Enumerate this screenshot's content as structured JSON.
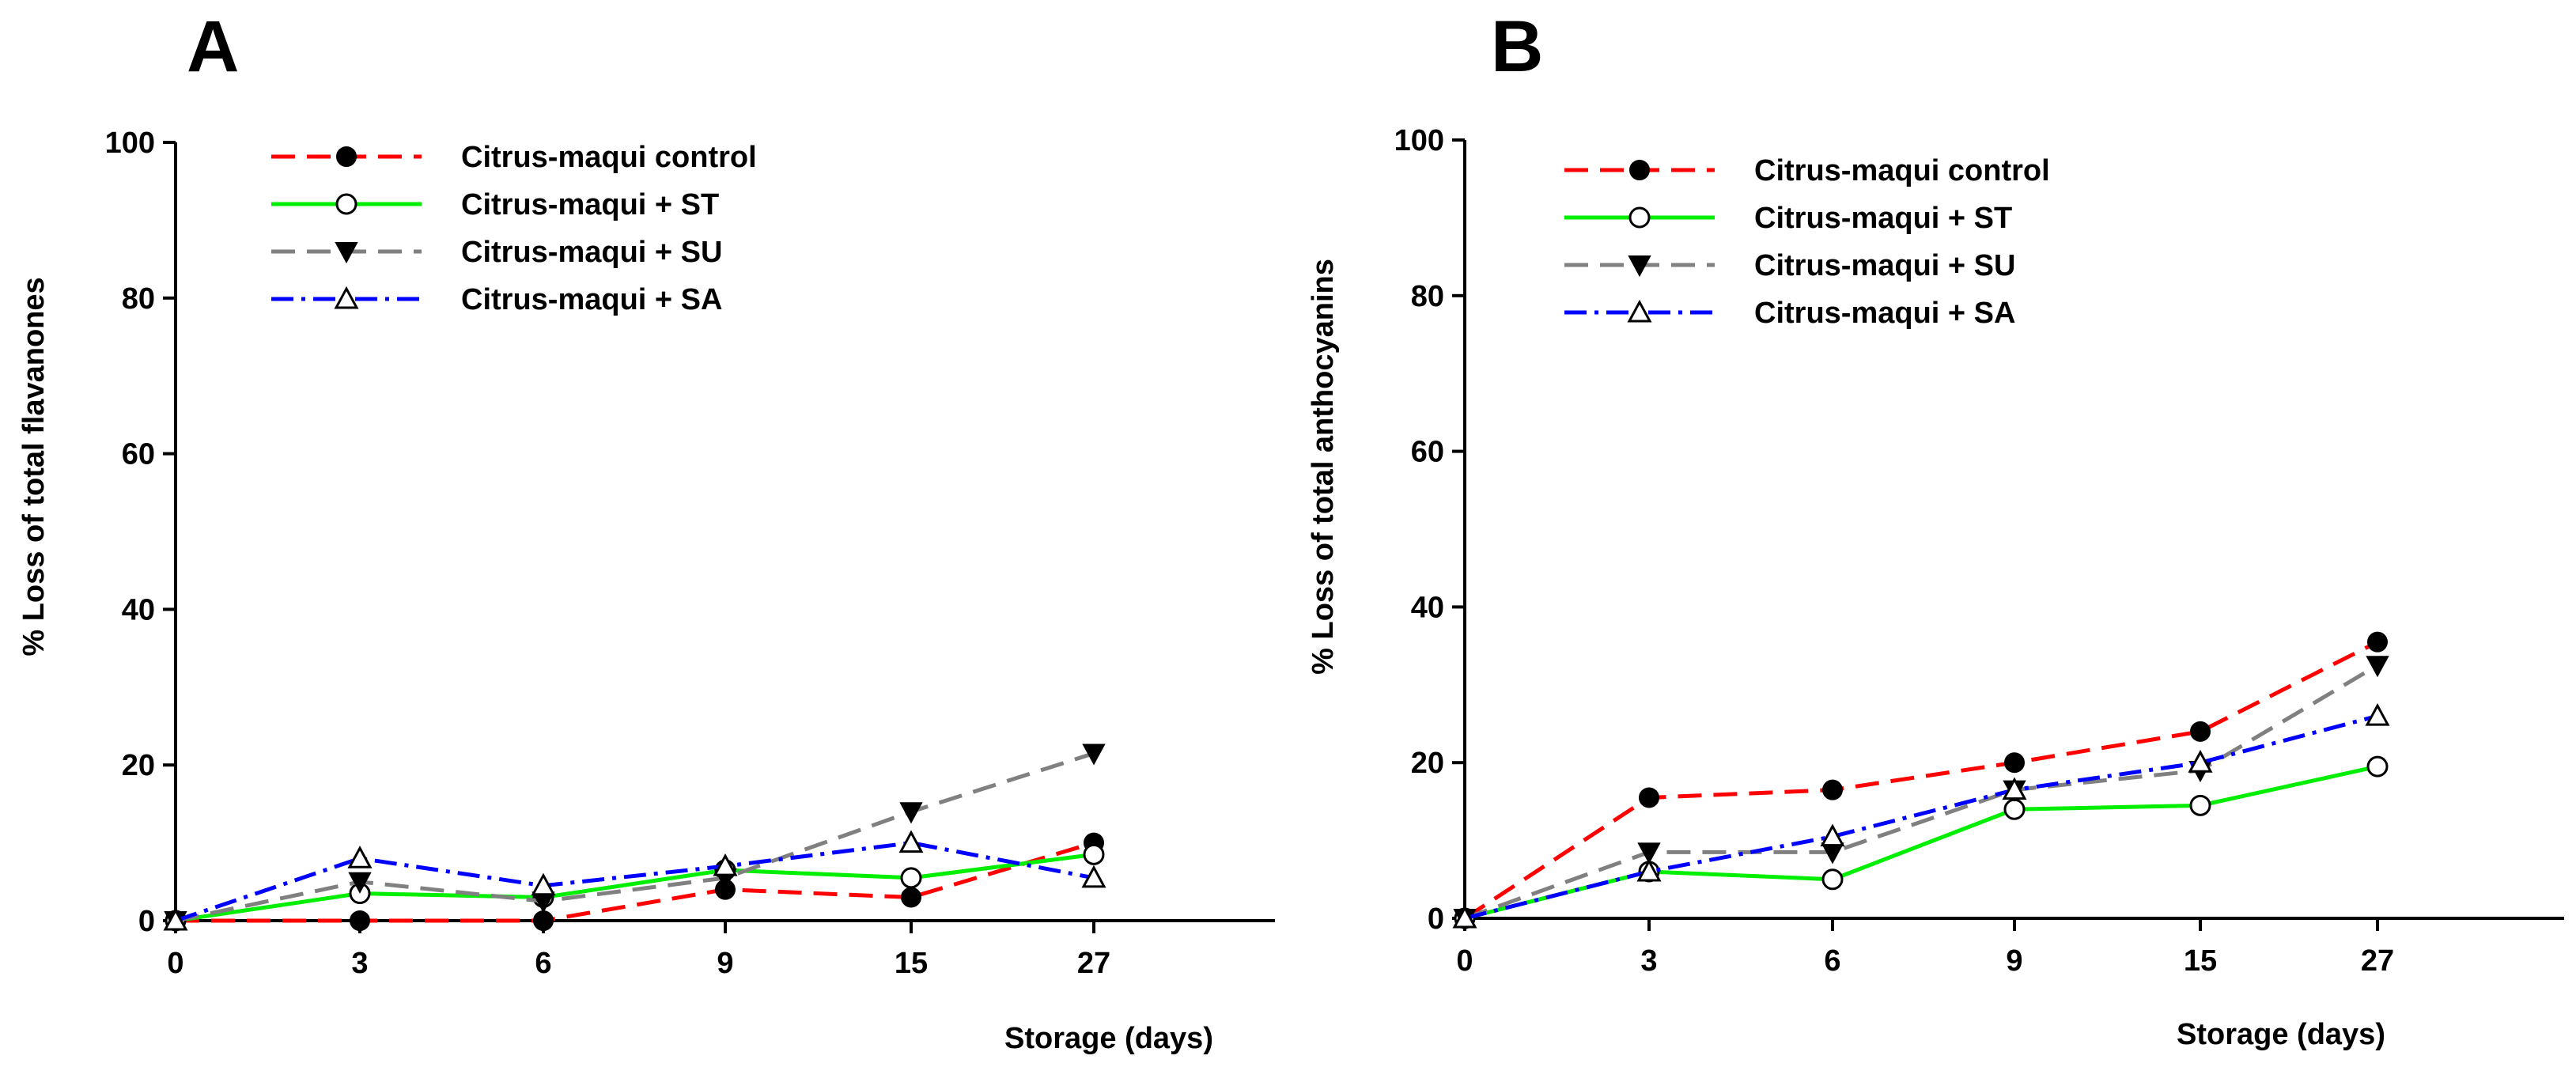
{
  "chart_data": [
    {
      "panel_label": "A",
      "type": "line",
      "xlabel": "Storage (days)",
      "ylabel": "% Loss of total flavanones",
      "categories": [
        "0",
        "3",
        "6",
        "9",
        "15",
        "27"
      ],
      "ylim": [
        0,
        100
      ],
      "yticks": [
        "0",
        "20",
        "40",
        "60",
        "80",
        "100"
      ],
      "legend_position": "top-left",
      "series": [
        {
          "name": "Citrus-maqui control",
          "values": [
            0,
            0,
            0,
            4,
            3,
            10
          ],
          "color": "#ff0000",
          "dash": "dashed",
          "marker": "filled-circle"
        },
        {
          "name": "Citrus-maqui + ST",
          "values": [
            0,
            3.5,
            3,
            6.5,
            5.5,
            8.5
          ],
          "color": "#00ee00",
          "dash": "solid",
          "marker": "open-circle"
        },
        {
          "name": "Citrus-maqui + SU",
          "values": [
            0,
            5,
            2.5,
            5.5,
            14,
            21.5
          ],
          "color": "#808080",
          "dash": "dashed",
          "marker": "filled-triangle-down"
        },
        {
          "name": "Citrus-maqui + SA",
          "values": [
            0,
            8,
            4.5,
            7,
            10,
            5.5
          ],
          "color": "#0000ff",
          "dash": "dash-dot",
          "marker": "open-triangle-up"
        }
      ]
    },
    {
      "panel_label": "B",
      "type": "line",
      "xlabel": "Storage (days)",
      "ylabel": "% Loss of total anthocyanins",
      "categories": [
        "0",
        "3",
        "6",
        "9",
        "15",
        "27"
      ],
      "ylim": [
        0,
        100
      ],
      "yticks": [
        "0",
        "20",
        "40",
        "60",
        "80",
        "100"
      ],
      "legend_position": "top-left",
      "series": [
        {
          "name": "Citrus-maqui control",
          "values": [
            0,
            15.5,
            16.5,
            20,
            24,
            35.5
          ],
          "color": "#ff0000",
          "dash": "dashed",
          "marker": "filled-circle"
        },
        {
          "name": "Citrus-maqui + ST",
          "values": [
            0,
            6,
            5,
            14,
            14.5,
            19.5
          ],
          "color": "#00ee00",
          "dash": "solid",
          "marker": "open-circle"
        },
        {
          "name": "Citrus-maqui + SU",
          "values": [
            0,
            8.5,
            8.5,
            16.5,
            19,
            32.5
          ],
          "color": "#808080",
          "dash": "dashed",
          "marker": "filled-triangle-down"
        },
        {
          "name": "Citrus-maqui + SA",
          "values": [
            0,
            6,
            10.5,
            16.5,
            20,
            26
          ],
          "color": "#0000ff",
          "dash": "dash-dot",
          "marker": "open-triangle-up"
        }
      ]
    }
  ]
}
